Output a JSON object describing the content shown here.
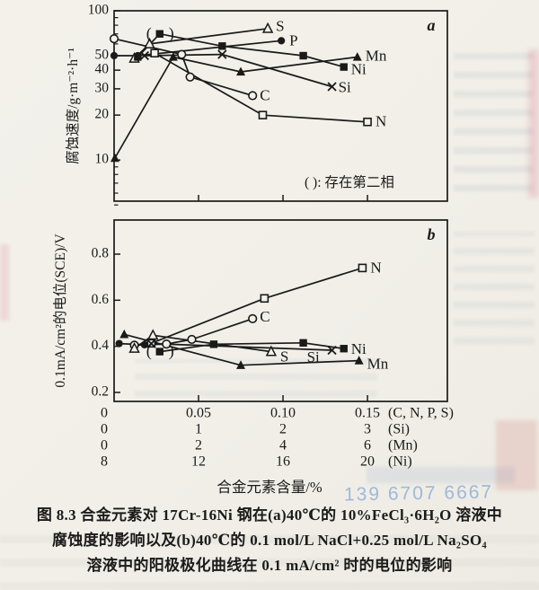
{
  "page": {
    "watermark_phone": "139 6707 6667"
  },
  "caption": {
    "lines": [
      "图 8.3  合金元素对 17Cr-16Ni 钢在(a)40℃的 10%FeCl₃·6H₂O 溶液中",
      "腐蚀度的影响以及(b)40℃的 0.1 mol/L NaCl+0.25 mol/L Na₂SO₄",
      "溶液中的阳极极化曲线在 0.1 mA/cm² 时的电位的影响"
    ]
  },
  "xaxis": {
    "title": "合金元素含量/%",
    "rows": [
      {
        "labels": [
          "0",
          "0.05",
          "0.10",
          "0.15"
        ],
        "suffix": "(C, N, P, S)"
      },
      {
        "labels": [
          "0",
          "1",
          "2",
          "3"
        ],
        "suffix": "(Si)"
      },
      {
        "labels": [
          "0",
          "2",
          "4",
          "6"
        ],
        "suffix": "(Mn)"
      },
      {
        "labels": [
          "8",
          "12",
          "16",
          "20"
        ],
        "suffix": "(Ni)"
      }
    ]
  },
  "chart_data": [
    {
      "type": "line",
      "panel_label": "a",
      "ylabel": "腐蚀速度/g·m⁻²·h⁻¹",
      "yscale": "log",
      "ylim": [
        5.3,
        100
      ],
      "yticks": [
        {
          "v": 100,
          "t": "100"
        },
        {
          "v": 50,
          "t": "50"
        },
        {
          "v": 40,
          "t": "40"
        },
        {
          "v": 30,
          "t": "30"
        },
        {
          "v": 20,
          "t": "20"
        },
        {
          "v": 10,
          "t": "10"
        }
      ],
      "yticks_minor": [
        90,
        80,
        70,
        60,
        9,
        8,
        7,
        6,
        5
      ],
      "xlim": [
        0,
        0.1973
      ],
      "xticks": [
        0.05,
        0.1,
        0.15
      ],
      "annotation": "( ): 存在第二相",
      "series": [
        {
          "name": "C",
          "marker": "open-circle",
          "label": "C",
          "label_offset": [
            8,
            1
          ],
          "points": [
            [
              0,
              65
            ],
            [
              0.04,
              51
            ],
            [
              0.045,
              36
            ],
            [
              0.082,
              27
            ]
          ]
        },
        {
          "name": "N",
          "marker": "open-square",
          "label": "N",
          "label_offset": [
            9,
            1
          ],
          "points": [
            [
              0.024,
              52
            ],
            [
              0.088,
              20
            ],
            [
              0.15,
              18
            ]
          ]
        },
        {
          "name": "P",
          "marker": "filled-circle",
          "label": "P",
          "label_offset": [
            9,
            1
          ],
          "points": [
            [
              0,
              50
            ],
            [
              0.014,
              50
            ],
            [
              0.099,
              63
            ]
          ]
        },
        {
          "name": "S",
          "marker": "open-triangle",
          "label": "S",
          "label_offset": [
            9,
            -1
          ],
          "points": [
            [
              0.012,
              48
            ],
            [
              0.021,
              60
            ],
            [
              0.091,
              76
            ]
          ]
        },
        {
          "name": "Si",
          "marker": "x-cross",
          "label": "Si",
          "label_offset": [
            7,
            2
          ],
          "points": [
            [
              0.018,
              50
            ],
            [
              0.064,
              51
            ],
            [
              0.129,
              31
            ]
          ]
        },
        {
          "name": "Mn",
          "marker": "filled-triangle",
          "label": "Mn",
          "label_offset": [
            9,
            0
          ],
          "points": [
            [
              0.0005,
              10.3
            ],
            [
              0.035,
              49
            ],
            [
              0.075,
              39
            ],
            [
              0.144,
              49
            ]
          ]
        },
        {
          "name": "Ni",
          "marker": "filled-square",
          "label": "Ni",
          "label_offset": [
            8,
            4
          ],
          "paren_index": 1,
          "points": [
            [
              0.014,
              49
            ],
            [
              0.027,
              70
            ],
            [
              0.064,
              58
            ],
            [
              0.112,
              50
            ],
            [
              0.136,
              42
            ]
          ]
        }
      ]
    },
    {
      "type": "line",
      "panel_label": "b",
      "ylabel": "0.1mA/cm²的电位(SCE)/V",
      "yscale": "linear",
      "ylim": [
        0.161,
        0.948
      ],
      "yticks": [
        {
          "v": 0.8,
          "t": "0.8"
        },
        {
          "v": 0.6,
          "t": "0.6"
        },
        {
          "v": 0.4,
          "t": "0.4"
        },
        {
          "v": 0.2,
          "t": "0.2"
        }
      ],
      "yticks_minor": [],
      "xlim": [
        0,
        0.1973
      ],
      "xticks": [
        0.05,
        0.1,
        0.15
      ],
      "annotation": "",
      "series": [
        {
          "name": "N",
          "marker": "open-square",
          "label": "N",
          "label_offset": [
            9,
            1
          ],
          "points": [
            [
              0.022,
              0.413
            ],
            [
              0.089,
              0.608
            ],
            [
              0.147,
              0.74
            ]
          ]
        },
        {
          "name": "C",
          "marker": "open-circle",
          "label": "C",
          "label_offset": [
            8,
            -1
          ],
          "points": [
            [
              0.012,
              0.405
            ],
            [
              0.031,
              0.41
            ],
            [
              0.046,
              0.43
            ],
            [
              0.082,
              0.52
            ]
          ]
        },
        {
          "name": "P",
          "marker": "filled-circle",
          "label": "",
          "label_offset": [
            0,
            0
          ],
          "points": [
            [
              0.003,
              0.412
            ],
            [
              0.018,
              0.407
            ]
          ]
        },
        {
          "name": "S",
          "marker": "open-triangle",
          "label": "S",
          "label_offset": [
            10,
            7
          ],
          "points": [
            [
              0.012,
              0.391
            ],
            [
              0.023,
              0.448
            ],
            [
              0.093,
              0.377
            ]
          ]
        },
        {
          "name": "Si",
          "marker": "x-cross",
          "label": "Si",
          "label_offset": [
            -28,
            9
          ],
          "points": [
            [
              0.022,
              0.412
            ],
            [
              0.129,
              0.383
            ]
          ]
        },
        {
          "name": "Mn",
          "marker": "filled-triangle",
          "label": "Mn",
          "label_offset": [
            9,
            5
          ],
          "points": [
            [
              0.006,
              0.452
            ],
            [
              0.075,
              0.318
            ],
            [
              0.145,
              0.338
            ]
          ]
        },
        {
          "name": "Ni",
          "marker": "filled-square",
          "label": "Ni",
          "label_offset": [
            8,
            2
          ],
          "paren_index": 0,
          "points": [
            [
              0.027,
              0.377
            ],
            [
              0.059,
              0.409
            ],
            [
              0.112,
              0.415
            ],
            [
              0.136,
              0.39
            ]
          ]
        }
      ]
    }
  ]
}
